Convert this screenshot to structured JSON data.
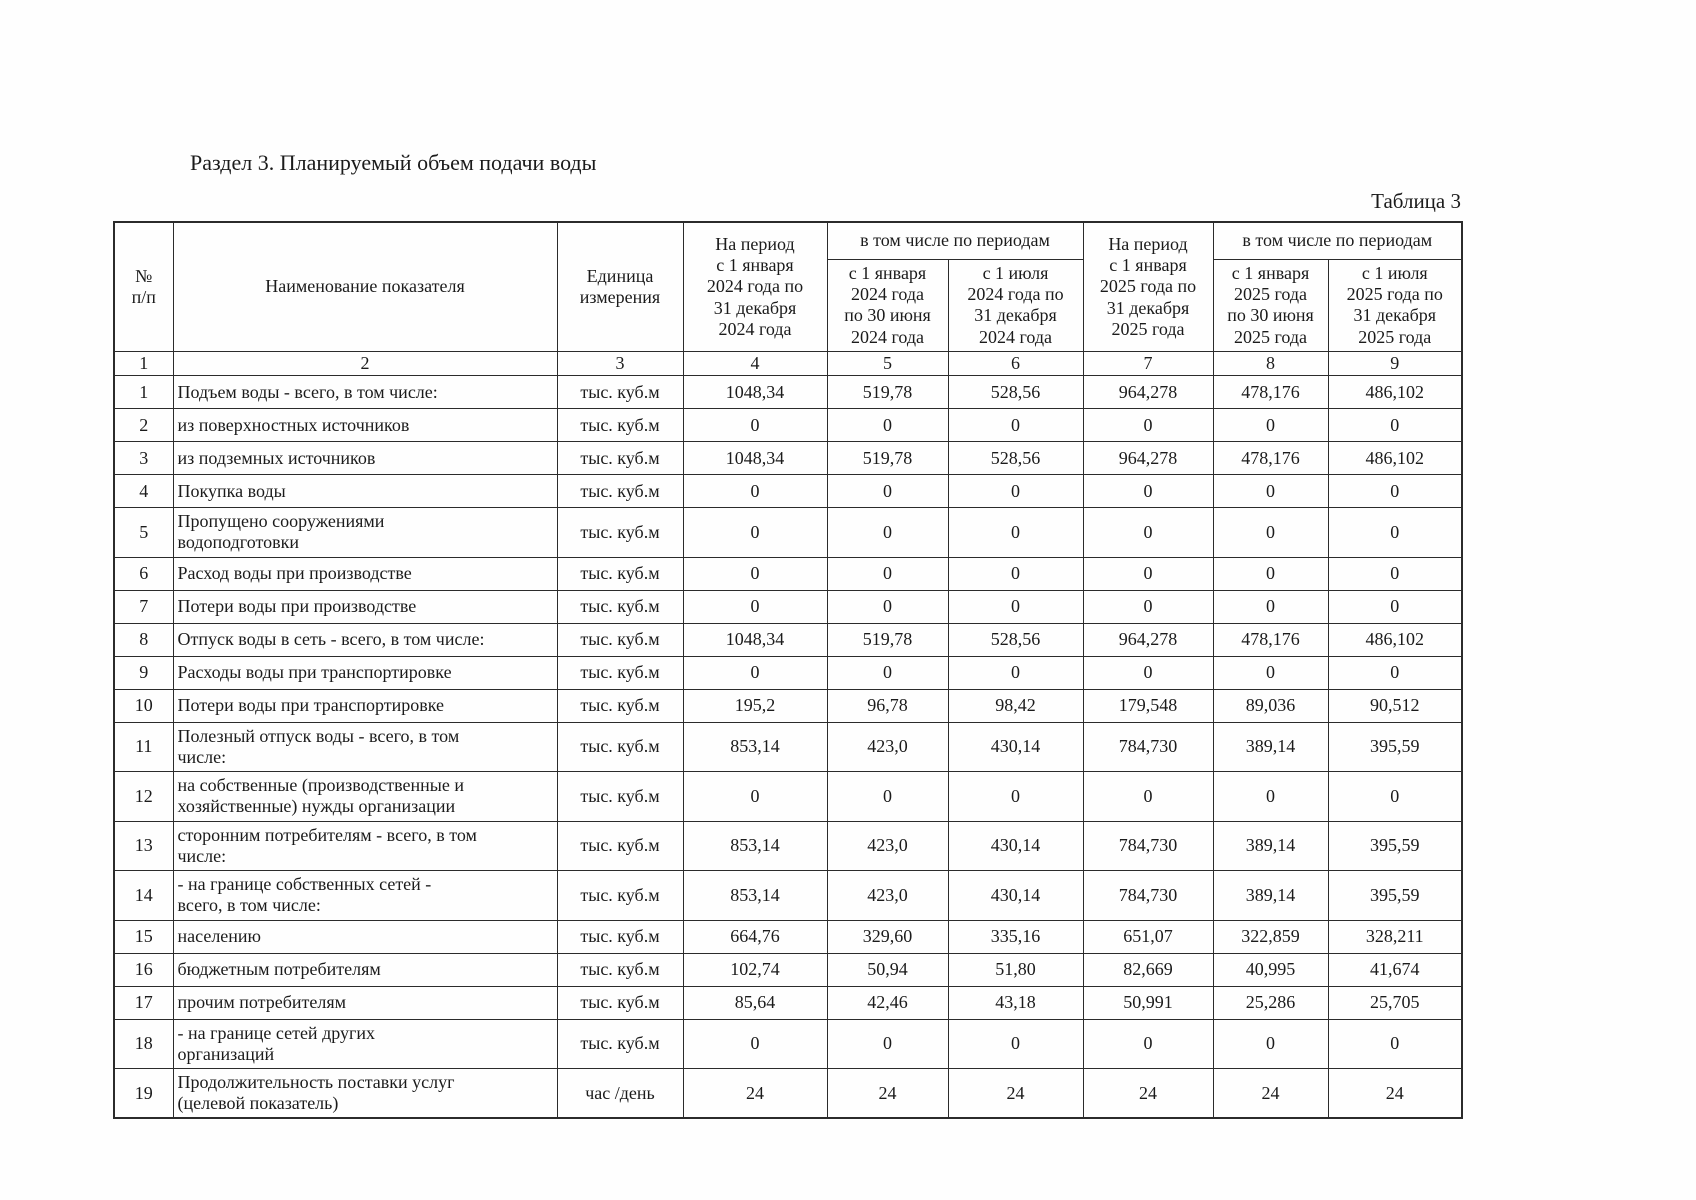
{
  "page": {
    "section_title": "Раздел 3. Планируемый объем подачи воды",
    "table_label": "Таблица 3"
  },
  "colors": {
    "page_background": "#fefefe",
    "text": "#1b1b1b",
    "table_border": "#2b2b2b"
  },
  "table": {
    "header": {
      "col_num": "№\nп/п",
      "col_name": "Наименование показателя",
      "col_unit": "Единица\nизмерения",
      "col_period_2024": "На период\nс 1 января\n2024 года по\n31 декабря\n2024 года",
      "col_subperiods_2024": "в том числе по периодам",
      "col_h1_2024": "с 1 января\n2024 года\nпо 30 июня\n2024 года",
      "col_h2_2024": "с 1 июля\n2024 года по\n31 декабря\n2024 года",
      "col_period_2025": "На период\nс 1 января\n2025 года по\n31 декабря\n2025 года",
      "col_subperiods_2025": "в том числе по периодам",
      "col_h1_2025": "с 1 января\n2025 года\nпо 30 июня\n2025 года",
      "col_h2_2025": "с 1 июля\n2025 года по\n31 декабря\n2025 года"
    },
    "column_numbers": [
      "1",
      "2",
      "3",
      "4",
      "5",
      "6",
      "7",
      "8",
      "9"
    ],
    "rows": [
      {
        "num": "1",
        "indent": 0,
        "name": "Подъем воды - всего, в том числе:",
        "unit": "тыс. куб.м",
        "values": [
          "1048,34",
          "519,78",
          "528,56",
          "964,278",
          "478,176",
          "486,102"
        ]
      },
      {
        "num": "2",
        "indent": 2,
        "name": "из поверхностных источников",
        "unit": "тыс. куб.м",
        "values": [
          "0",
          "0",
          "0",
          "0",
          "0",
          "0"
        ]
      },
      {
        "num": "3",
        "indent": 2,
        "name": "из подземных источников",
        "unit": "тыс. куб.м",
        "values": [
          "1048,34",
          "519,78",
          "528,56",
          "964,278",
          "478,176",
          "486,102"
        ]
      },
      {
        "num": "4",
        "indent": 0,
        "name": "Покупка воды",
        "unit": "тыс. куб.м",
        "values": [
          "0",
          "0",
          "0",
          "0",
          "0",
          "0"
        ]
      },
      {
        "num": "5",
        "indent": 0,
        "name": "Пропущено сооружениями\nводоподготовки",
        "unit": "тыс. куб.м",
        "values": [
          "0",
          "0",
          "0",
          "0",
          "0",
          "0"
        ]
      },
      {
        "num": "6",
        "indent": 0,
        "name": "Расход воды при производстве",
        "unit": "тыс. куб.м",
        "values": [
          "0",
          "0",
          "0",
          "0",
          "0",
          "0"
        ]
      },
      {
        "num": "7",
        "indent": 0,
        "name": "Потери воды при производстве",
        "unit": "тыс. куб.м",
        "values": [
          "0",
          "0",
          "0",
          "0",
          "0",
          "0"
        ]
      },
      {
        "num": "8",
        "indent": 0,
        "name": "Отпуск воды в сеть - всего, в том числе:",
        "unit": "тыс. куб.м",
        "values": [
          "1048,34",
          "519,78",
          "528,56",
          "964,278",
          "478,176",
          "486,102"
        ]
      },
      {
        "num": "9",
        "indent": 0,
        "name": "Расходы воды при транспортировке",
        "unit": "тыс. куб.м",
        "values": [
          "0",
          "0",
          "0",
          "0",
          "0",
          "0"
        ]
      },
      {
        "num": "10",
        "indent": 0,
        "name": "Потери воды при транспортировке",
        "unit": "тыс. куб.м",
        "values": [
          "195,2",
          "96,78",
          "98,42",
          "179,548",
          "89,036",
          "90,512"
        ]
      },
      {
        "num": "11",
        "indent": 0,
        "name": "Полезный отпуск воды - всего, в том\nчисле:",
        "unit": "тыс. куб.м",
        "values": [
          "853,14",
          "423,0",
          "430,14",
          "784,730",
          "389,14",
          "395,59"
        ]
      },
      {
        "num": "12",
        "indent": 1,
        "name": "на собственные (производственные и\nхозяйственные) нужды организации",
        "unit": "тыс. куб.м",
        "values": [
          "0",
          "0",
          "0",
          "0",
          "0",
          "0"
        ]
      },
      {
        "num": "13",
        "indent": 1,
        "name": "сторонним потребителям - всего, в том\nчисле:",
        "unit": "тыс. куб.м",
        "values": [
          "853,14",
          "423,0",
          "430,14",
          "784,730",
          "389,14",
          "395,59"
        ]
      },
      {
        "num": "14",
        "indent": 1,
        "name": "- на границе собственных сетей -\nвсего, в том числе:",
        "unit": "тыс. куб.м",
        "values": [
          "853,14",
          "423,0",
          "430,14",
          "784,730",
          "389,14",
          "395,59"
        ]
      },
      {
        "num": "15",
        "indent": 3,
        "name": "населению",
        "unit": "тыс. куб.м",
        "values": [
          "664,76",
          "329,60",
          "335,16",
          "651,07",
          "322,859",
          "328,211"
        ]
      },
      {
        "num": "16",
        "indent": 3,
        "name": "бюджетным потребителям",
        "unit": "тыс. куб.м",
        "values": [
          "102,74",
          "50,94",
          "51,80",
          "82,669",
          "40,995",
          "41,674"
        ]
      },
      {
        "num": "17",
        "indent": 3,
        "name": "прочим потребителям",
        "unit": "тыс. куб.м",
        "values": [
          "85,64",
          "42,46",
          "43,18",
          "50,991",
          "25,286",
          "25,705"
        ]
      },
      {
        "num": "18",
        "indent": 1,
        "name": "- на границе сетей других\nорганизаций",
        "unit": "тыс. куб.м",
        "values": [
          "0",
          "0",
          "0",
          "0",
          "0",
          "0"
        ]
      },
      {
        "num": "19",
        "indent": 0,
        "name": "Продолжительность поставки услуг\n(целевой показатель)",
        "unit": "час /день",
        "values": [
          "24",
          "24",
          "24",
          "24",
          "24",
          "24"
        ]
      }
    ]
  }
}
